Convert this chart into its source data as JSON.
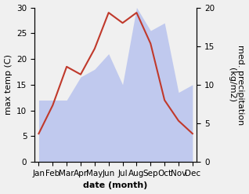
{
  "months": [
    "Jan",
    "Feb",
    "Mar",
    "Apr",
    "May",
    "Jun",
    "Jul",
    "Aug",
    "Sep",
    "Oct",
    "Nov",
    "Dec"
  ],
  "month_x": [
    0,
    1,
    2,
    3,
    4,
    5,
    6,
    7,
    8,
    9,
    10,
    11
  ],
  "temperature": [
    5.5,
    11.0,
    18.5,
    17.0,
    22.0,
    29.0,
    27.0,
    29.0,
    23.0,
    12.0,
    8.0,
    5.5
  ],
  "precipitation": [
    8,
    8,
    8,
    11,
    12,
    14,
    10,
    20,
    17,
    18,
    9,
    10
  ],
  "temp_color": "#c0392b",
  "precip_color": "#b0bcee",
  "ylabel_left": "max temp (C)",
  "ylabel_right": "med. precipitation\n(kg/m2)",
  "xlabel": "date (month)",
  "ylim_left": [
    0,
    30
  ],
  "ylim_right": [
    0,
    20
  ],
  "background_color": "#f0f0f0",
  "label_fontsize": 8,
  "tick_fontsize": 7.5
}
